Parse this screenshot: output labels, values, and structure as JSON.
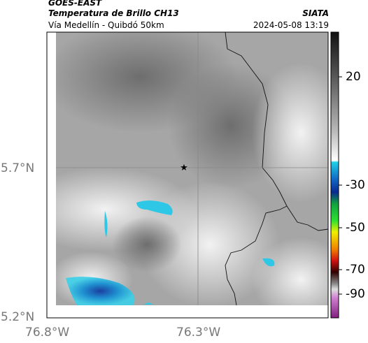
{
  "header": {
    "satellite": "GOES-EAST",
    "product": "Temperatura de Brillo CH13",
    "source": "SIATA",
    "region": "Vía Medellín - Quibdó 50km",
    "timestamp": "2024-05-08 13:19"
  },
  "axes": {
    "lat": [
      "5.7°N",
      "5.2°N"
    ],
    "lon": [
      "76.8°W",
      "76.3°W"
    ]
  },
  "colorbar": {
    "ticks": [
      20,
      -30,
      -50,
      -70,
      -90
    ]
  }
}
